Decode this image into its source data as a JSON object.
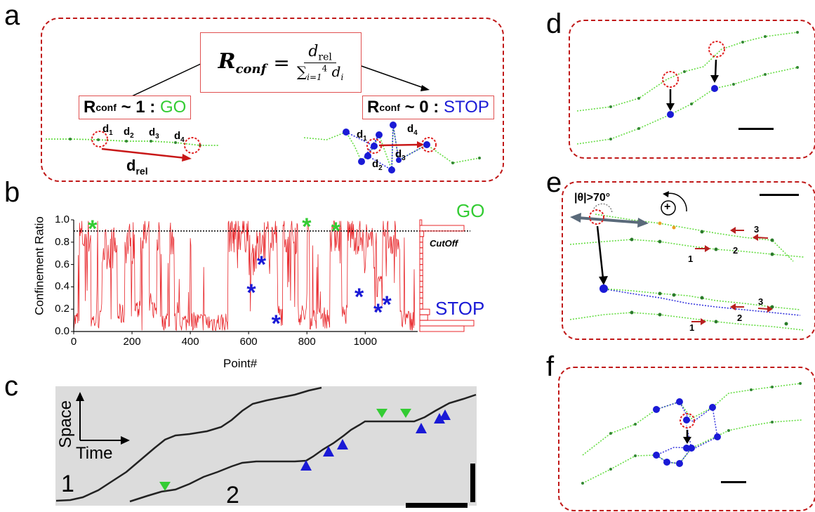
{
  "panels": {
    "a": "a",
    "b": "b",
    "c": "c",
    "d": "d",
    "e": "e",
    "f": "f"
  },
  "formula": {
    "lhs": "R",
    "lhs_sub": "conf",
    "equals": "=",
    "num": "d",
    "num_sub": "rel",
    "den_sum": "∑",
    "den_sup": "4",
    "den_sub": "i=1",
    "den_d": "d",
    "den_i": "i"
  },
  "go_box": {
    "r": "R",
    "sub": "conf",
    "rest": " ~ 1 : ",
    "word": "GO"
  },
  "stop_box": {
    "r": "R",
    "sub": "conf",
    "rest": " ~ 0 : ",
    "word": "STOP"
  },
  "go_track": {
    "d1": "d",
    "d1s": "1",
    "d2": "d",
    "d2s": "2",
    "d3": "d",
    "d3s": "3",
    "d4": "d",
    "d4s": "4",
    "drel": "d",
    "drels": "rel"
  },
  "stop_track": {
    "d1": "d",
    "d1s": "1",
    "d2": "d",
    "d2s": "2",
    "d3": "d",
    "d3s": "3",
    "d4": "d",
    "d4s": "4"
  },
  "colors": {
    "red": "#e8262a",
    "green": "#33cc33",
    "blue": "#1a1ad6",
    "track_green": "#55dd33",
    "dash_red": "#c01818"
  },
  "chart_data": {
    "type": "line",
    "ylabel": "Confinement Ratio",
    "xlabel": "Point#",
    "xlim": [
      0,
      1180
    ],
    "ylim": [
      0.0,
      1.0
    ],
    "xticks": [
      "0",
      "200",
      "400",
      "600",
      "800",
      "1000"
    ],
    "yticks": [
      "0.0",
      "0.2",
      "0.4",
      "0.6",
      "0.8",
      "1.0"
    ],
    "cutoff": 0.9,
    "cutoff_label": "CutOff",
    "go_label": "GO",
    "stop_label": "STOP",
    "green_stars": [
      {
        "x": 70,
        "y": 0.95
      },
      {
        "x": 805,
        "y": 0.97
      },
      {
        "x": 905,
        "y": 0.93
      }
    ],
    "blue_stars": [
      {
        "x": 650,
        "y": 0.63
      },
      {
        "x": 615,
        "y": 0.38
      },
      {
        "x": 700,
        "y": 0.1
      },
      {
        "x": 985,
        "y": 0.34
      },
      {
        "x": 1050,
        "y": 0.2
      },
      {
        "x": 1080,
        "y": 0.27
      }
    ],
    "histogram": [
      0.02,
      0.45,
      0.04,
      0.03,
      0.03,
      0.03,
      0.03,
      0.03,
      0.03,
      0.03,
      0.03,
      0.03,
      0.03,
      0.03,
      0.03,
      0.03,
      0.1,
      0.08,
      0.55,
      0.45
    ],
    "star_symbol": "*"
  },
  "kymograph": {
    "space": "Space",
    "time": "Time",
    "track1": "1",
    "track2": "2"
  },
  "panel_e": {
    "angle": "|θ|>70°",
    "plus": "+",
    "n1": "1",
    "n2": "2",
    "n3": "3",
    "m1": "1",
    "m2": "2",
    "m3": "3"
  }
}
